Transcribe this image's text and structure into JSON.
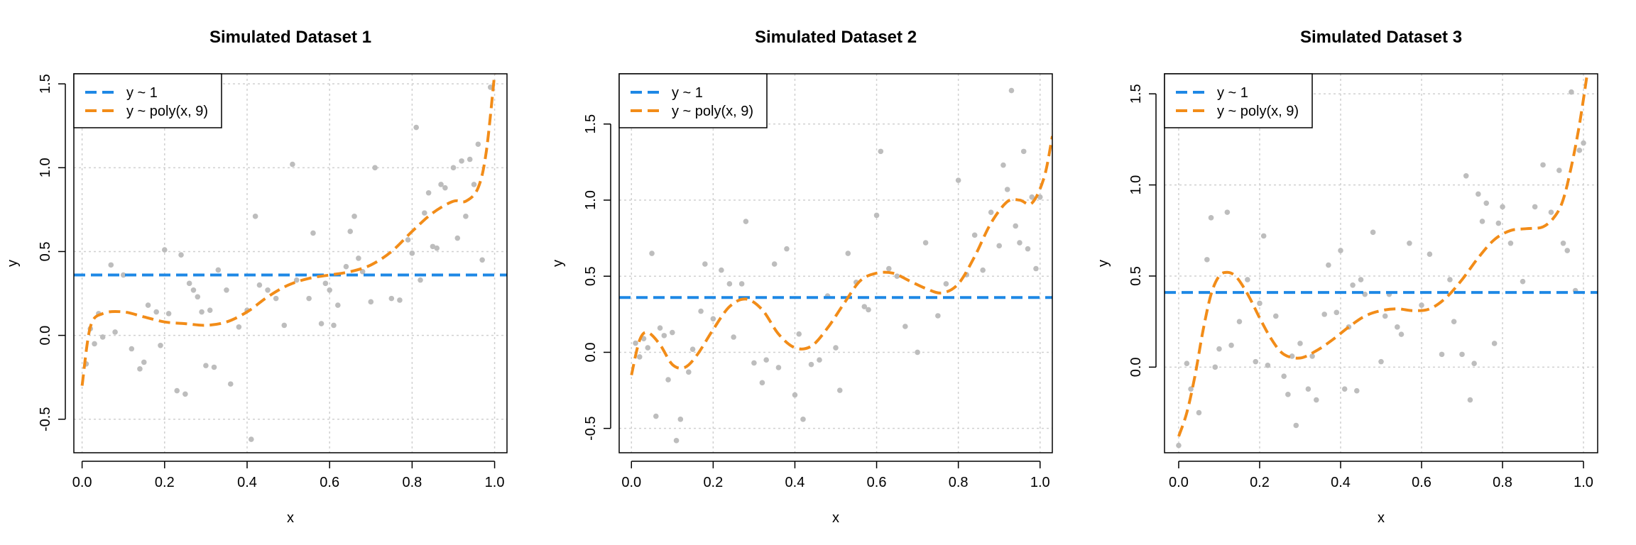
{
  "colors": {
    "flat": "#1e88e5",
    "poly": "#f28c18",
    "points": "#bdbdbd",
    "grid": "#d0d0d0"
  },
  "chart_data": [
    {
      "type": "scatter",
      "title": "Simulated Dataset 1",
      "xlabel": "x",
      "ylabel": "y",
      "xlim": [
        -0.02,
        1.03
      ],
      "ylim": [
        -0.7,
        1.56
      ],
      "xticks": [
        0.0,
        0.2,
        0.4,
        0.6,
        0.8,
        1.0
      ],
      "xtick_labels": [
        "0.0",
        "0.2",
        "0.4",
        "0.6",
        "0.8",
        "1.0"
      ],
      "yticks": [
        -0.5,
        0.0,
        0.5,
        1.0,
        1.5
      ],
      "ytick_labels": [
        "-0.5",
        "0.0",
        "0.5",
        "1.0",
        "1.5"
      ],
      "legend": {
        "position": "top-left",
        "entries": [
          "y ~ 1",
          "y ~ poly(x, 9)"
        ]
      },
      "flat_fit": 0.36,
      "poly_fit": {
        "x": [
          0.0,
          0.02,
          0.05,
          0.1,
          0.15,
          0.2,
          0.25,
          0.3,
          0.35,
          0.4,
          0.45,
          0.5,
          0.55,
          0.6,
          0.65,
          0.7,
          0.75,
          0.8,
          0.85,
          0.9,
          0.93,
          0.96,
          0.98,
          1.0
        ],
        "y": [
          -0.3,
          0.05,
          0.13,
          0.14,
          0.11,
          0.08,
          0.07,
          0.06,
          0.08,
          0.14,
          0.23,
          0.3,
          0.34,
          0.36,
          0.38,
          0.42,
          0.5,
          0.62,
          0.73,
          0.8,
          0.8,
          0.88,
          1.1,
          1.56
        ]
      },
      "points": {
        "x": [
          0.01,
          0.02,
          0.03,
          0.04,
          0.05,
          0.07,
          0.08,
          0.1,
          0.12,
          0.14,
          0.15,
          0.16,
          0.18,
          0.19,
          0.2,
          0.21,
          0.23,
          0.24,
          0.25,
          0.26,
          0.27,
          0.28,
          0.29,
          0.3,
          0.31,
          0.32,
          0.33,
          0.35,
          0.36,
          0.38,
          0.4,
          0.41,
          0.42,
          0.43,
          0.45,
          0.47,
          0.49,
          0.51,
          0.52,
          0.55,
          0.56,
          0.58,
          0.59,
          0.6,
          0.61,
          0.62,
          0.64,
          0.65,
          0.66,
          0.67,
          0.68,
          0.7,
          0.71,
          0.75,
          0.77,
          0.79,
          0.8,
          0.81,
          0.82,
          0.83,
          0.84,
          0.85,
          0.86,
          0.87,
          0.88,
          0.9,
          0.91,
          0.92,
          0.93,
          0.94,
          0.95,
          0.96,
          0.97,
          0.99
        ],
        "y": [
          -0.17,
          0.04,
          -0.05,
          0.13,
          -0.01,
          0.42,
          0.02,
          0.36,
          -0.08,
          -0.2,
          -0.16,
          0.18,
          0.14,
          -0.06,
          0.51,
          0.13,
          -0.33,
          0.48,
          -0.35,
          0.31,
          0.27,
          0.23,
          0.14,
          -0.18,
          0.15,
          -0.19,
          0.39,
          0.27,
          -0.29,
          0.05,
          0.15,
          -0.62,
          0.71,
          0.3,
          0.27,
          0.22,
          0.06,
          1.02,
          0.33,
          0.22,
          0.61,
          0.07,
          0.31,
          0.27,
          0.06,
          0.18,
          0.41,
          0.62,
          0.71,
          0.46,
          0.38,
          0.2,
          1.0,
          0.22,
          0.21,
          0.57,
          0.49,
          1.24,
          0.33,
          0.73,
          0.85,
          0.53,
          0.52,
          0.9,
          0.88,
          1.0,
          0.58,
          1.04,
          0.71,
          1.05,
          0.9,
          1.14,
          0.45,
          1.48
        ]
      }
    },
    {
      "type": "scatter",
      "title": "Simulated Dataset 2",
      "xlabel": "x",
      "ylabel": "y",
      "xlim": [
        -0.03,
        1.03
      ],
      "ylim": [
        -0.66,
        1.83
      ],
      "xticks": [
        0.0,
        0.2,
        0.4,
        0.6,
        0.8,
        1.0
      ],
      "xtick_labels": [
        "0.0",
        "0.2",
        "0.4",
        "0.6",
        "0.8",
        "1.0"
      ],
      "yticks": [
        -0.5,
        0.0,
        0.5,
        1.0,
        1.5
      ],
      "ytick_labels": [
        "-0.5",
        "0.0",
        "0.5",
        "1.0",
        "1.5"
      ],
      "legend": {
        "position": "top-left",
        "entries": [
          "y ~ 1",
          "y ~ poly(x, 9)"
        ]
      },
      "flat_fit": 0.36,
      "poly_fit": {
        "x": [
          0.0,
          0.02,
          0.04,
          0.07,
          0.1,
          0.13,
          0.16,
          0.2,
          0.24,
          0.28,
          0.32,
          0.36,
          0.4,
          0.44,
          0.48,
          0.52,
          0.56,
          0.6,
          0.64,
          0.68,
          0.72,
          0.76,
          0.8,
          0.84,
          0.88,
          0.92,
          0.95,
          0.98,
          1.01,
          1.03
        ],
        "y": [
          -0.15,
          0.08,
          0.13,
          0.05,
          -0.08,
          -0.1,
          -0.02,
          0.15,
          0.3,
          0.35,
          0.28,
          0.12,
          0.03,
          0.04,
          0.16,
          0.32,
          0.47,
          0.52,
          0.52,
          0.47,
          0.42,
          0.39,
          0.45,
          0.63,
          0.85,
          0.99,
          1.0,
          0.98,
          1.15,
          1.42
        ]
      },
      "points": {
        "x": [
          0.01,
          0.02,
          0.03,
          0.04,
          0.05,
          0.06,
          0.07,
          0.08,
          0.09,
          0.1,
          0.11,
          0.12,
          0.14,
          0.15,
          0.17,
          0.18,
          0.2,
          0.22,
          0.24,
          0.25,
          0.27,
          0.28,
          0.3,
          0.32,
          0.33,
          0.35,
          0.36,
          0.38,
          0.4,
          0.41,
          0.42,
          0.44,
          0.46,
          0.48,
          0.5,
          0.51,
          0.53,
          0.55,
          0.57,
          0.58,
          0.6,
          0.61,
          0.63,
          0.65,
          0.67,
          0.7,
          0.72,
          0.75,
          0.77,
          0.8,
          0.82,
          0.84,
          0.86,
          0.88,
          0.9,
          0.91,
          0.92,
          0.93,
          0.94,
          0.95,
          0.96,
          0.97,
          0.98,
          0.99,
          1.0
        ],
        "y": [
          0.06,
          -0.03,
          0.09,
          0.03,
          0.65,
          -0.42,
          0.16,
          0.11,
          -0.18,
          0.13,
          -0.58,
          -0.44,
          -0.13,
          0.02,
          0.27,
          0.58,
          0.22,
          0.54,
          0.45,
          0.1,
          0.45,
          0.86,
          -0.07,
          -0.2,
          -0.05,
          0.58,
          -0.1,
          0.68,
          -0.28,
          0.12,
          -0.44,
          -0.08,
          -0.05,
          0.37,
          0.03,
          -0.25,
          0.65,
          0.46,
          0.3,
          0.28,
          0.9,
          1.32,
          0.55,
          0.5,
          0.17,
          0.0,
          0.72,
          0.24,
          0.45,
          1.13,
          0.51,
          0.77,
          0.54,
          0.92,
          0.7,
          1.23,
          1.07,
          1.72,
          0.83,
          0.72,
          1.32,
          0.68,
          1.02,
          0.55,
          1.02
        ]
      }
    },
    {
      "type": "scatter",
      "title": "Simulated Dataset 3",
      "xlabel": "x",
      "ylabel": "y",
      "xlim": [
        -0.035,
        1.035
      ],
      "ylim": [
        -0.47,
        1.61
      ],
      "xticks": [
        0.0,
        0.2,
        0.4,
        0.6,
        0.8,
        1.0
      ],
      "xtick_labels": [
        "0.0",
        "0.2",
        "0.4",
        "0.6",
        "0.8",
        "1.0"
      ],
      "yticks": [
        0.0,
        0.5,
        1.0,
        1.5
      ],
      "ytick_labels": [
        "0.0",
        "0.5",
        "1.0",
        "1.5"
      ],
      "legend": {
        "position": "top-left",
        "entries": [
          "y ~ 1",
          "y ~ poly(x, 9)"
        ]
      },
      "flat_fit": 0.41,
      "poly_fit": {
        "x": [
          0.0,
          0.02,
          0.04,
          0.06,
          0.08,
          0.1,
          0.12,
          0.14,
          0.16,
          0.18,
          0.2,
          0.23,
          0.26,
          0.3,
          0.34,
          0.38,
          0.42,
          0.46,
          0.5,
          0.54,
          0.58,
          0.62,
          0.66,
          0.7,
          0.74,
          0.78,
          0.82,
          0.86,
          0.9,
          0.93,
          0.95,
          0.97,
          0.99,
          1.01
        ],
        "y": [
          -0.38,
          -0.25,
          -0.05,
          0.2,
          0.4,
          0.5,
          0.52,
          0.5,
          0.44,
          0.36,
          0.27,
          0.15,
          0.07,
          0.05,
          0.09,
          0.15,
          0.22,
          0.28,
          0.31,
          0.32,
          0.31,
          0.32,
          0.38,
          0.48,
          0.6,
          0.7,
          0.75,
          0.76,
          0.77,
          0.83,
          0.92,
          1.1,
          1.33,
          1.62
        ]
      },
      "points": {
        "x": [
          0.0,
          0.02,
          0.03,
          0.05,
          0.07,
          0.08,
          0.09,
          0.1,
          0.12,
          0.13,
          0.15,
          0.17,
          0.19,
          0.2,
          0.21,
          0.22,
          0.24,
          0.26,
          0.27,
          0.28,
          0.29,
          0.3,
          0.32,
          0.33,
          0.34,
          0.36,
          0.37,
          0.39,
          0.4,
          0.41,
          0.42,
          0.43,
          0.44,
          0.45,
          0.46,
          0.48,
          0.5,
          0.51,
          0.52,
          0.54,
          0.55,
          0.57,
          0.6,
          0.62,
          0.65,
          0.67,
          0.68,
          0.7,
          0.71,
          0.72,
          0.73,
          0.74,
          0.75,
          0.76,
          0.78,
          0.79,
          0.8,
          0.82,
          0.85,
          0.88,
          0.9,
          0.92,
          0.94,
          0.95,
          0.96,
          0.97,
          0.98,
          0.99,
          1.0
        ],
        "y": [
          -0.43,
          0.02,
          -0.12,
          -0.25,
          0.59,
          0.82,
          0.0,
          0.1,
          0.85,
          0.12,
          0.25,
          0.48,
          0.03,
          0.35,
          0.72,
          0.01,
          0.28,
          -0.05,
          -0.15,
          0.06,
          -0.32,
          0.13,
          -0.12,
          0.06,
          -0.18,
          0.29,
          0.56,
          0.3,
          0.64,
          -0.12,
          0.22,
          0.45,
          -0.13,
          0.48,
          0.4,
          0.74,
          0.03,
          0.28,
          0.4,
          0.22,
          0.18,
          0.68,
          0.34,
          0.62,
          0.07,
          0.48,
          0.25,
          0.07,
          1.05,
          -0.18,
          0.02,
          0.95,
          0.8,
          0.9,
          0.13,
          0.79,
          0.88,
          0.68,
          0.47,
          0.88,
          1.11,
          0.85,
          1.08,
          0.68,
          0.64,
          1.51,
          0.42,
          1.19,
          1.23
        ]
      }
    }
  ]
}
